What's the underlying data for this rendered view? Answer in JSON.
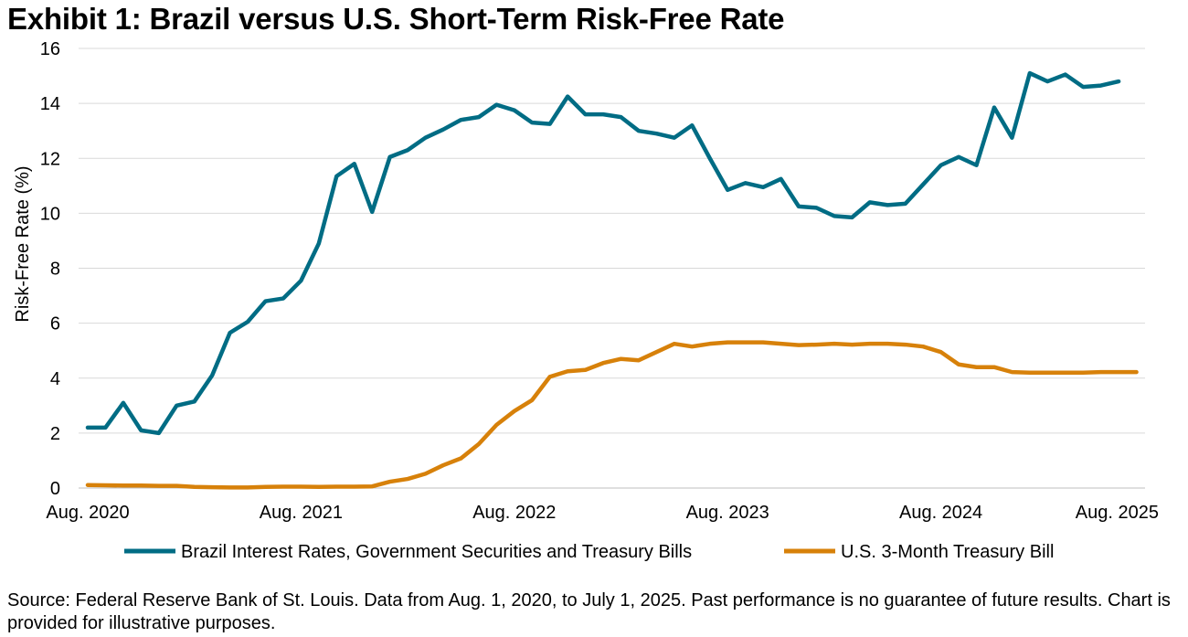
{
  "title": "Exhibit 1: Brazil versus U.S. Short-Term Risk-Free Rate",
  "source": "Source: Federal Reserve Bank of St. Louis. Data from Aug. 1, 2020, to July 1, 2025. Past performance is no guarantee of future results. Chart is provided for illustrative purposes.",
  "colors": {
    "brazil": "#006c84",
    "us": "#d7810a",
    "grid": "#d9d9d9"
  },
  "chart_data": {
    "type": "line",
    "ylabel": "Risk-Free Rate (%)",
    "ylim": [
      0,
      16
    ],
    "yticks": [
      0,
      2,
      4,
      6,
      8,
      10,
      12,
      14,
      16
    ],
    "xlim": [
      "2020-08",
      "2025-08"
    ],
    "xticks": [
      "Aug. 2020",
      "Aug. 2021",
      "Aug. 2022",
      "Aug. 2023",
      "Aug. 2024",
      "Aug. 2025"
    ],
    "grid": "horizontal",
    "legend": "bottom",
    "x": [
      "2020-08",
      "2020-09",
      "2020-10",
      "2020-11",
      "2020-12",
      "2021-01",
      "2021-02",
      "2021-03",
      "2021-04",
      "2021-05",
      "2021-06",
      "2021-07",
      "2021-08",
      "2021-09",
      "2021-10",
      "2021-11",
      "2021-12",
      "2022-01",
      "2022-02",
      "2022-03",
      "2022-04",
      "2022-05",
      "2022-06",
      "2022-07",
      "2022-08",
      "2022-09",
      "2022-10",
      "2022-11",
      "2022-12",
      "2023-01",
      "2023-02",
      "2023-03",
      "2023-04",
      "2023-05",
      "2023-06",
      "2023-07",
      "2023-08",
      "2023-09",
      "2023-10",
      "2023-11",
      "2023-12",
      "2024-01",
      "2024-02",
      "2024-03",
      "2024-04",
      "2024-05",
      "2024-06",
      "2024-07",
      "2024-08",
      "2024-09",
      "2024-10",
      "2024-11",
      "2024-12",
      "2025-01",
      "2025-02",
      "2025-03",
      "2025-04",
      "2025-05",
      "2025-06",
      "2025-07"
    ],
    "series": [
      {
        "name": "Brazil Interest Rates, Government Securities and Treasury Bills",
        "color": "#006c84",
        "values": [
          2.2,
          2.2,
          3.1,
          2.1,
          2.0,
          3.0,
          3.15,
          4.1,
          5.65,
          6.05,
          6.8,
          6.9,
          7.55,
          8.9,
          11.35,
          11.8,
          10.05,
          12.05,
          12.3,
          12.75,
          13.05,
          13.4,
          13.5,
          13.95,
          13.75,
          13.3,
          13.25,
          14.25,
          13.6,
          13.6,
          13.5,
          13.0,
          12.9,
          12.75,
          13.2,
          12.0,
          10.85,
          11.1,
          10.95,
          11.25,
          10.25,
          10.2,
          9.9,
          9.85,
          10.4,
          10.3,
          10.35,
          11.05,
          11.75,
          12.05,
          11.75,
          13.85,
          12.75,
          15.1,
          14.8,
          15.05,
          14.6,
          14.65,
          14.8,
          null
        ]
      },
      {
        "name": "U.S. 3-Month Treasury Bill",
        "color": "#d7810a",
        "values": [
          0.11,
          0.1,
          0.09,
          0.09,
          0.08,
          0.08,
          0.04,
          0.03,
          0.02,
          0.02,
          0.04,
          0.05,
          0.05,
          0.04,
          0.05,
          0.05,
          0.06,
          0.23,
          0.33,
          0.52,
          0.83,
          1.08,
          1.6,
          2.3,
          2.8,
          3.2,
          4.05,
          4.25,
          4.3,
          4.55,
          4.7,
          4.65,
          4.95,
          5.25,
          5.15,
          5.25,
          5.3,
          5.3,
          5.3,
          5.25,
          5.2,
          5.22,
          5.25,
          5.22,
          5.25,
          5.25,
          5.22,
          5.15,
          4.95,
          4.5,
          4.4,
          4.4,
          4.22,
          4.2,
          4.2,
          4.2,
          4.2,
          4.22,
          4.22,
          4.22
        ]
      }
    ]
  }
}
